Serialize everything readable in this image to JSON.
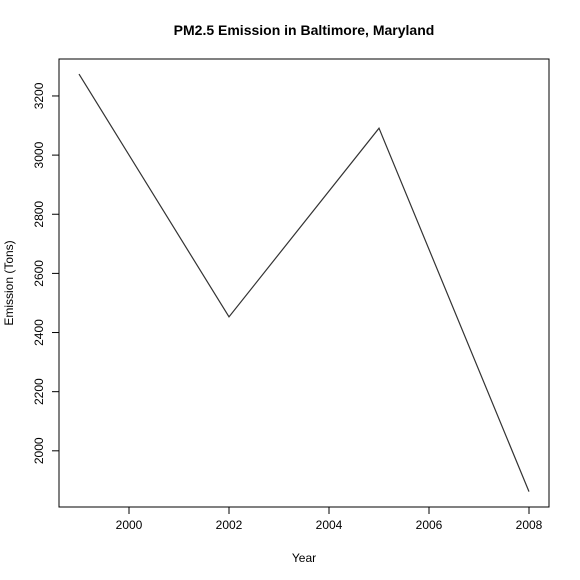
{
  "chart_data": {
    "type": "line",
    "title": "PM2.5 Emission in Baltimore, Maryland",
    "xlabel": "Year",
    "ylabel": "Emission (Tons)",
    "x": [
      1999,
      2002,
      2005,
      2008
    ],
    "series": [
      {
        "values": [
          3274,
          2453,
          3091,
          1862
        ]
      }
    ],
    "xlim": [
      1998.6,
      2008.4
    ],
    "ylim": [
      1810,
      3325
    ],
    "xticks": [
      2000,
      2002,
      2004,
      2006,
      2008
    ],
    "yticks": [
      2000,
      2200,
      2400,
      2600,
      2800,
      3000,
      3200
    ],
    "line_color": "#333333",
    "grid": false,
    "legend": "none"
  }
}
